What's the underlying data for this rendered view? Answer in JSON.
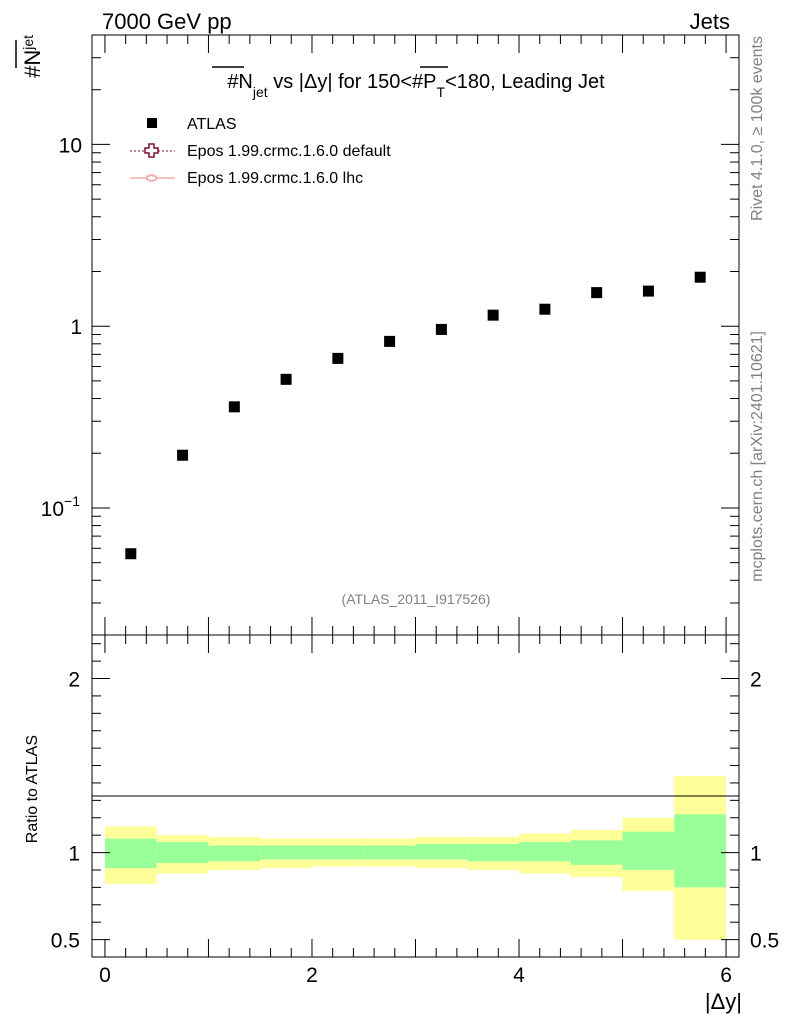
{
  "header": {
    "left": "7000 GeV pp",
    "right": "Jets"
  },
  "side_text": {
    "top": "Rivet 4.1.0, ≥ 100k events",
    "bottom": "mcplots.cern.ch [arXiv:2401.10621]"
  },
  "chart_data": {
    "type": "scatter",
    "title": {
      "prefix": "#N",
      "sub": "jet",
      "middle": " vs |Δy| for 150<#P",
      "sub2": "T",
      "suffix": "<180, Leading Jet"
    },
    "ylabel": {
      "main": "#N",
      "sub": "jet"
    },
    "xlabel": "|Δy|",
    "watermark": "(ATLAS_2011_I917526)",
    "yscale": "log",
    "ylim": [
      0.02,
      40
    ],
    "xlim": [
      -0.125,
      6.125
    ],
    "y_ticks": [
      {
        "value": 10,
        "label": "10"
      },
      {
        "value": 1,
        "label": "1"
      },
      {
        "value": 0.1,
        "label": "10",
        "sup": "−1"
      }
    ],
    "legend": {
      "position": "top-left",
      "entries": [
        {
          "label": "ATLAS",
          "style": "marker-square",
          "color": "#000000"
        },
        {
          "label": "Epos 1.99.crmc.1.6.0 default",
          "style": "dotted-cross",
          "color": "#7a1030"
        },
        {
          "label": "Epos 1.99.crmc.1.6.0 lhc",
          "style": "line-marker",
          "color": "#f08080"
        }
      ]
    },
    "series": [
      {
        "name": "ATLAS",
        "x": [
          0.25,
          0.75,
          1.25,
          1.75,
          2.25,
          2.75,
          3.25,
          3.75,
          4.25,
          4.75,
          5.25,
          5.75
        ],
        "y": [
          0.056,
          0.195,
          0.36,
          0.51,
          0.665,
          0.825,
          0.96,
          1.15,
          1.24,
          1.53,
          1.56,
          1.86
        ]
      }
    ],
    "ratio": {
      "ylabel": "Ratio to ATLAS",
      "ylim": [
        0.4,
        2.25
      ],
      "y_ticks": [
        {
          "value": 2,
          "label": "2"
        },
        {
          "value": 1,
          "label": "1"
        },
        {
          "value": 0.5,
          "label": "0.5"
        }
      ],
      "x_ticks": [
        {
          "value": 0,
          "label": "0"
        },
        {
          "value": 2,
          "label": "2"
        },
        {
          "value": 4,
          "label": "4"
        },
        {
          "value": 6,
          "label": "6"
        }
      ],
      "bins": [
        {
          "xlo": 0.0,
          "xhi": 0.5,
          "stat_lo": 0.91,
          "stat_hi": 1.08,
          "tot_lo": 0.82,
          "tot_hi": 1.15
        },
        {
          "xlo": 0.5,
          "xhi": 1.0,
          "stat_lo": 0.94,
          "stat_hi": 1.06,
          "tot_lo": 0.88,
          "tot_hi": 1.1
        },
        {
          "xlo": 1.0,
          "xhi": 1.5,
          "stat_lo": 0.95,
          "stat_hi": 1.04,
          "tot_lo": 0.9,
          "tot_hi": 1.09
        },
        {
          "xlo": 1.5,
          "xhi": 2.0,
          "stat_lo": 0.96,
          "stat_hi": 1.04,
          "tot_lo": 0.91,
          "tot_hi": 1.08
        },
        {
          "xlo": 2.0,
          "xhi": 2.5,
          "stat_lo": 0.96,
          "stat_hi": 1.04,
          "tot_lo": 0.92,
          "tot_hi": 1.08
        },
        {
          "xlo": 2.5,
          "xhi": 3.0,
          "stat_lo": 0.96,
          "stat_hi": 1.04,
          "tot_lo": 0.92,
          "tot_hi": 1.08
        },
        {
          "xlo": 3.0,
          "xhi": 3.5,
          "stat_lo": 0.96,
          "stat_hi": 1.05,
          "tot_lo": 0.91,
          "tot_hi": 1.09
        },
        {
          "xlo": 3.5,
          "xhi": 4.0,
          "stat_lo": 0.95,
          "stat_hi": 1.05,
          "tot_lo": 0.9,
          "tot_hi": 1.09
        },
        {
          "xlo": 4.0,
          "xhi": 4.5,
          "stat_lo": 0.95,
          "stat_hi": 1.06,
          "tot_lo": 0.88,
          "tot_hi": 1.11
        },
        {
          "xlo": 4.5,
          "xhi": 5.0,
          "stat_lo": 0.93,
          "stat_hi": 1.07,
          "tot_lo": 0.86,
          "tot_hi": 1.13
        },
        {
          "xlo": 5.0,
          "xhi": 5.5,
          "stat_lo": 0.9,
          "stat_hi": 1.12,
          "tot_lo": 0.78,
          "tot_hi": 1.2
        },
        {
          "xlo": 5.5,
          "xhi": 6.0,
          "stat_lo": 0.8,
          "stat_hi": 1.22,
          "tot_lo": 0.5,
          "tot_hi": 1.44
        }
      ]
    },
    "colors": {
      "stat_band": "#99ff99",
      "total_band": "#ffff99",
      "data": "#000000",
      "mc_default": "#7a1030",
      "mc_lhc": "#f08080"
    }
  }
}
